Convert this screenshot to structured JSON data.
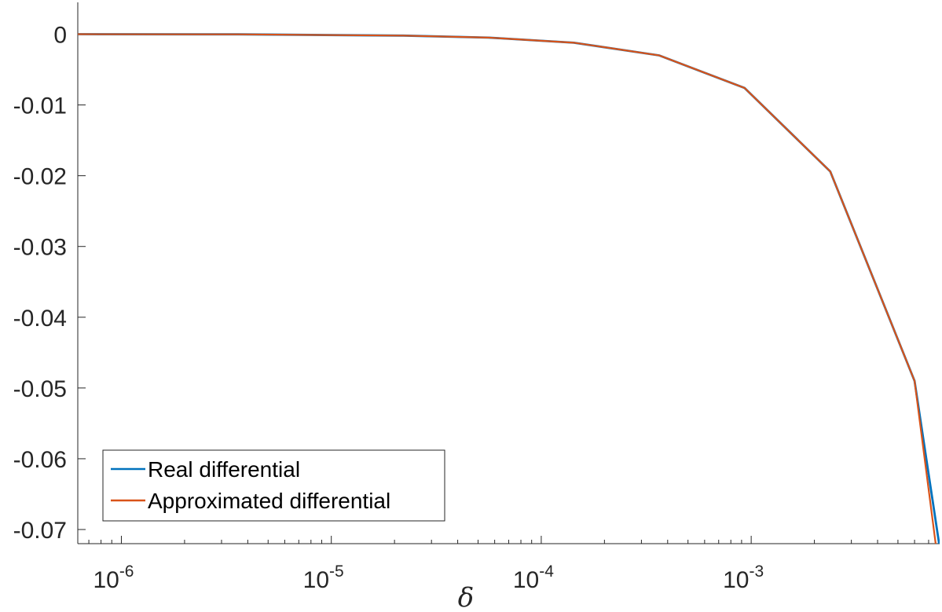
{
  "chart_data": {
    "type": "line",
    "xlabel": "δ",
    "ylabel": "",
    "title": "",
    "xscale": "log",
    "xlim": [
      6.2e-07,
      0.0079
    ],
    "ylim": [
      -0.072,
      0.0045
    ],
    "x_ticks": [
      {
        "value": 1e-06,
        "base": "10",
        "exp": "-6"
      },
      {
        "value": 1e-05,
        "base": "10",
        "exp": "-5"
      },
      {
        "value": 0.0001,
        "base": "10",
        "exp": "-4"
      },
      {
        "value": 0.001,
        "base": "10",
        "exp": "-3"
      }
    ],
    "y_ticks": [
      {
        "value": 0,
        "label": "0"
      },
      {
        "value": -0.01,
        "label": "-0.01"
      },
      {
        "value": -0.02,
        "label": "-0.02"
      },
      {
        "value": -0.03,
        "label": "-0.03"
      },
      {
        "value": -0.04,
        "label": "-0.04"
      },
      {
        "value": -0.05,
        "label": "-0.05"
      },
      {
        "value": -0.06,
        "label": "-0.06"
      },
      {
        "value": -0.07,
        "label": "-0.07"
      }
    ],
    "grid": false,
    "legend_position": "bottom-left",
    "series": [
      {
        "name": "Real differential",
        "color": "#0072BD",
        "x": [
          6.2e-07,
          3.6e-06,
          2.2e-05,
          5.6e-05,
          0.000143,
          0.000365,
          0.00093,
          0.00238,
          0.006,
          0.0079
        ],
        "y": [
          0,
          -2e-05,
          -0.0002,
          -0.00048,
          -0.0012,
          -0.003,
          -0.0076,
          -0.0194,
          -0.049,
          -0.0725
        ]
      },
      {
        "name": "Approximated differential",
        "color": "#D95319",
        "x": [
          6.2e-07,
          3.6e-06,
          2.2e-05,
          5.6e-05,
          0.000143,
          0.000365,
          0.00093,
          0.00238,
          0.006,
          0.0076
        ],
        "y": [
          0,
          -2e-05,
          -0.0002,
          -0.00048,
          -0.0012,
          -0.003,
          -0.0076,
          -0.0194,
          -0.049,
          -0.0725
        ]
      }
    ]
  }
}
